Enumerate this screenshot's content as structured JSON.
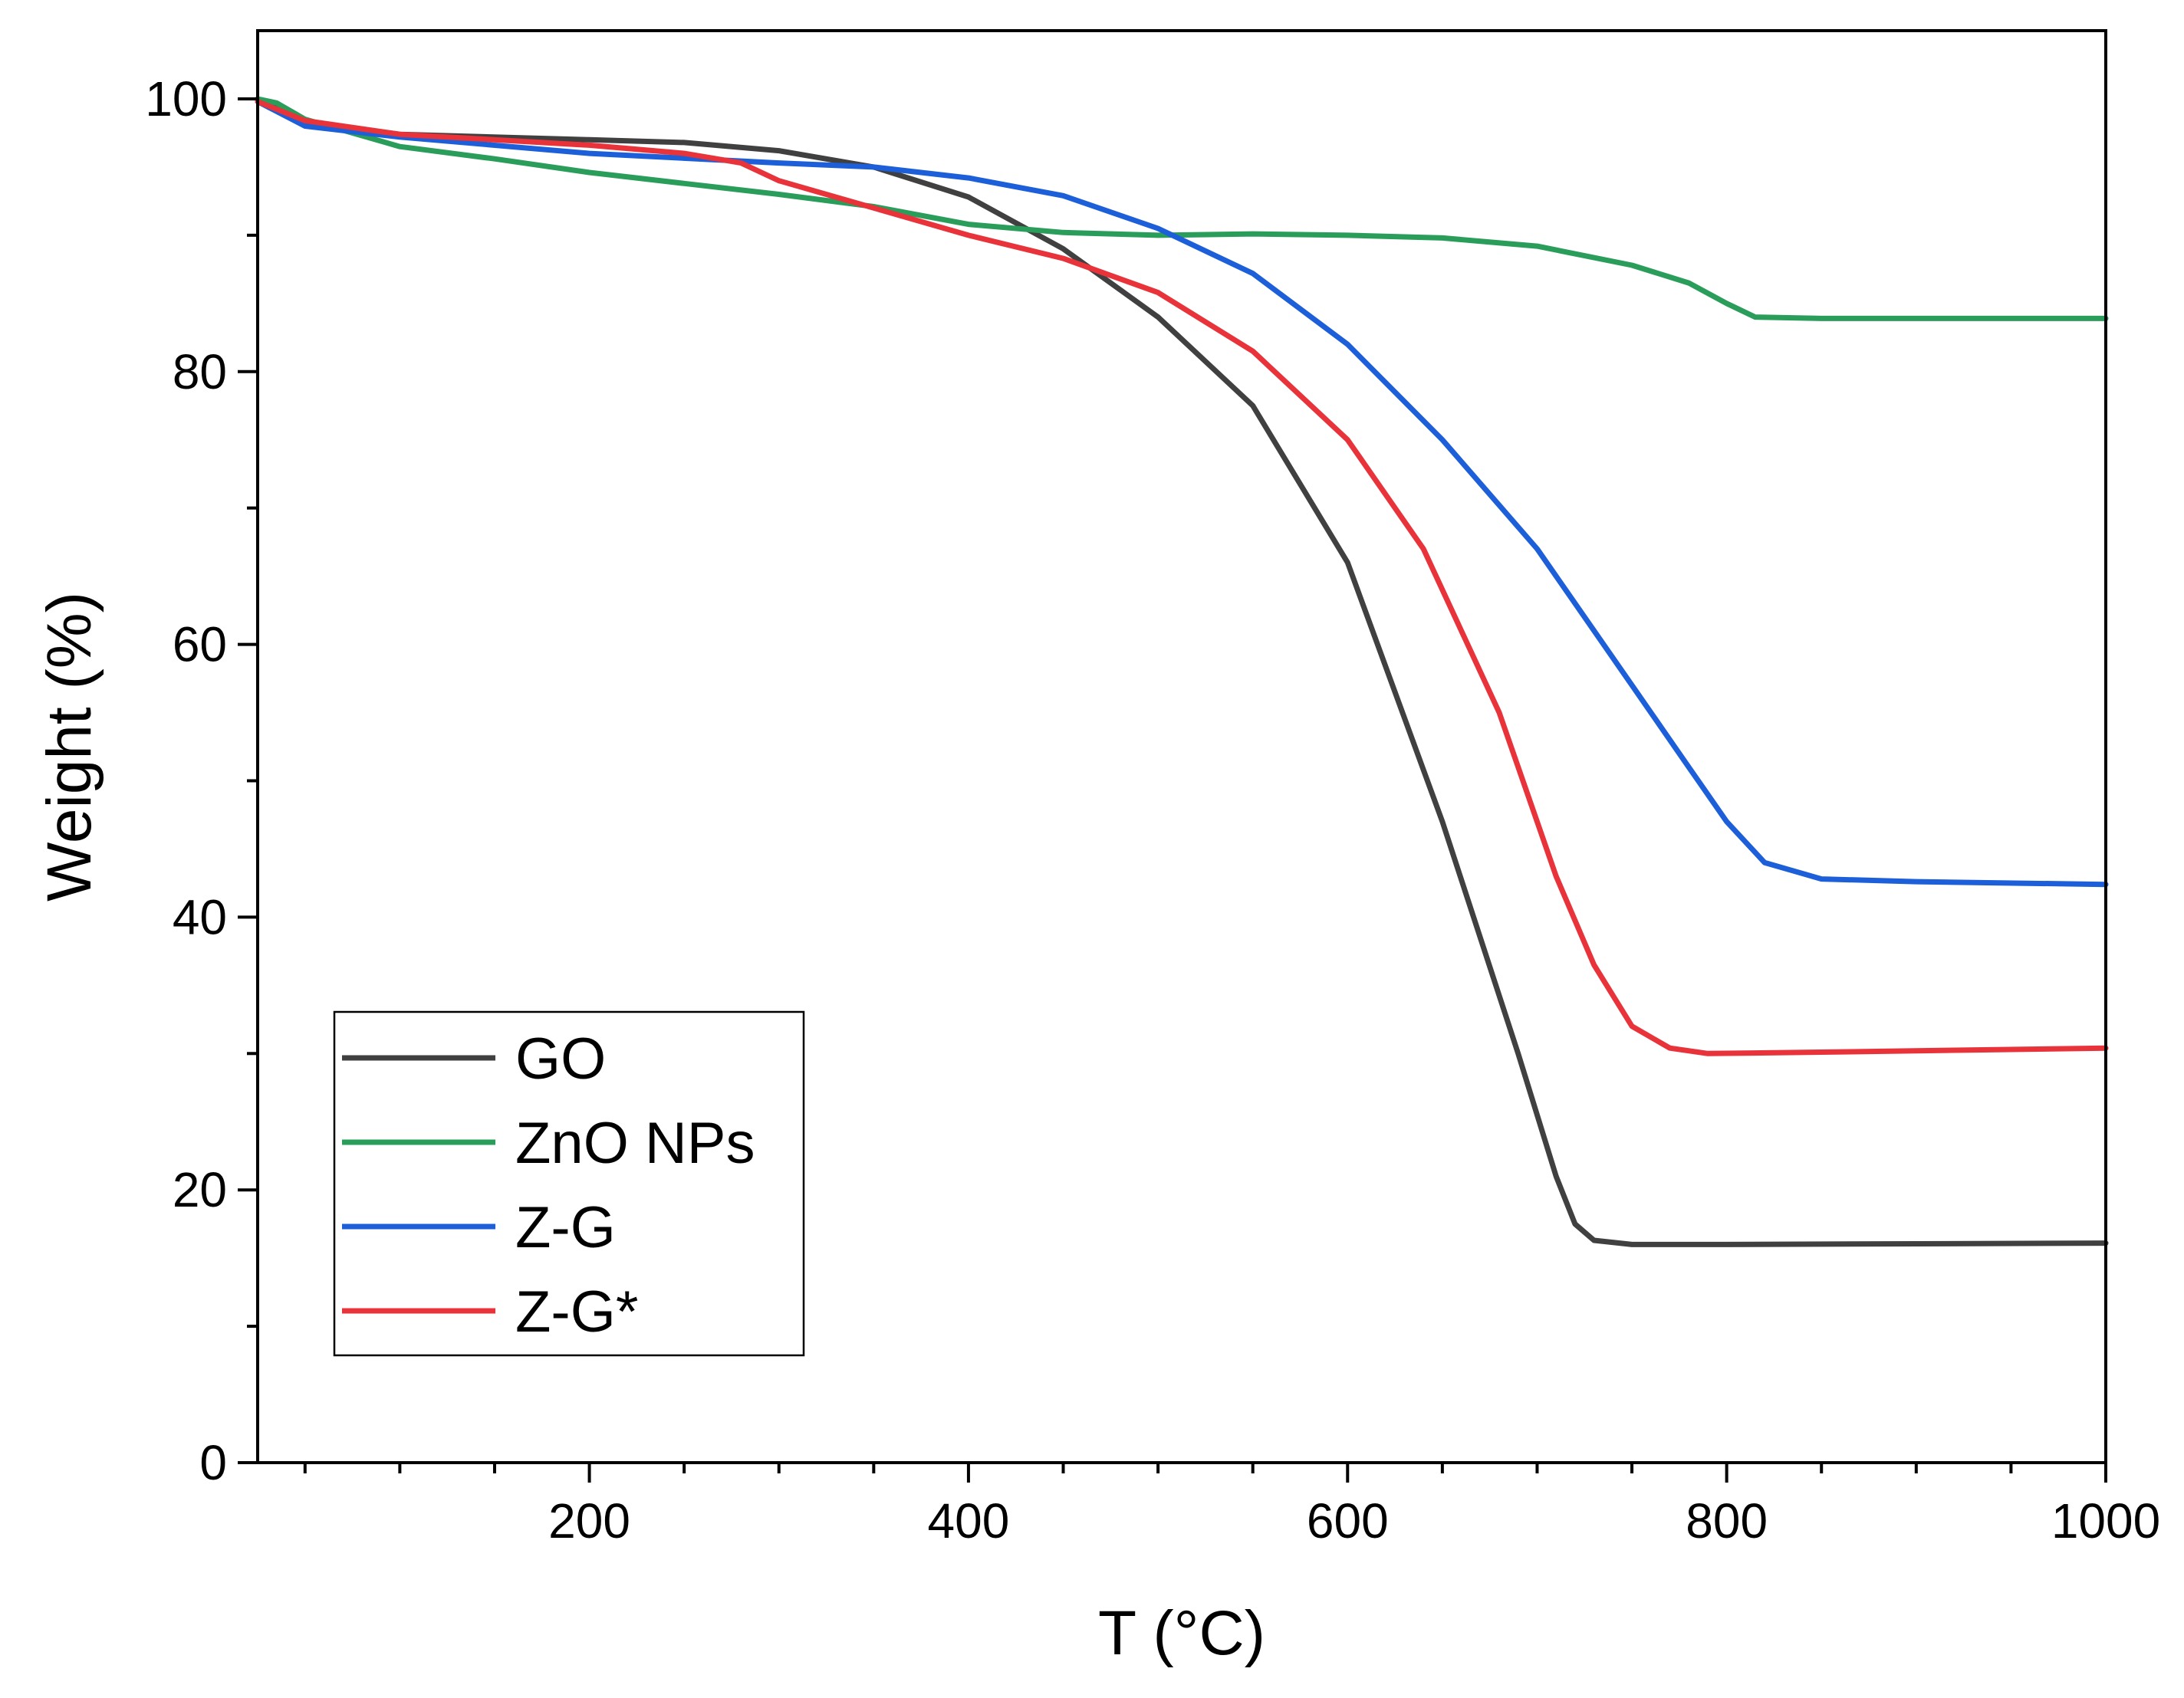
{
  "chart_data": {
    "type": "line",
    "title": "",
    "xlabel": "T (°C)",
    "ylabel": "Weight (%)",
    "xlim": [
      25,
      1000
    ],
    "ylim": [
      0,
      105
    ],
    "xticks": [
      200,
      400,
      600,
      800,
      1000
    ],
    "xtick_labels": [
      "200",
      "400",
      "600",
      "800",
      "1000"
    ],
    "yticks": [
      0,
      20,
      40,
      60,
      80,
      100
    ],
    "ytick_labels": [
      "0",
      "20",
      "40",
      "60",
      "80",
      "100"
    ],
    "x_minor_step": 50,
    "y_minor_step": 10,
    "grid": false,
    "legend_position": "bottom-left",
    "series": [
      {
        "name": "GO",
        "color": "#404040",
        "points": [
          [
            25,
            100
          ],
          [
            50,
            98.3
          ],
          [
            100,
            97.4
          ],
          [
            200,
            97.0
          ],
          [
            250,
            96.8
          ],
          [
            300,
            96.2
          ],
          [
            350,
            95.0
          ],
          [
            400,
            92.8
          ],
          [
            450,
            89.0
          ],
          [
            480,
            86.0
          ],
          [
            500,
            84.0
          ],
          [
            550,
            77.5
          ],
          [
            600,
            66.0
          ],
          [
            650,
            47.0
          ],
          [
            690,
            30.0
          ],
          [
            710,
            21.0
          ],
          [
            720,
            17.5
          ],
          [
            730,
            16.3
          ],
          [
            750,
            16.0
          ],
          [
            800,
            16.0
          ],
          [
            1000,
            16.1
          ]
        ]
      },
      {
        "name": "ZnO NPs",
        "color": "#2a9d5a",
        "points": [
          [
            25,
            100
          ],
          [
            35,
            99.7
          ],
          [
            50,
            98.5
          ],
          [
            100,
            96.5
          ],
          [
            150,
            95.6
          ],
          [
            200,
            94.6
          ],
          [
            250,
            93.8
          ],
          [
            300,
            93.0
          ],
          [
            350,
            92.1
          ],
          [
            400,
            90.8
          ],
          [
            450,
            90.2
          ],
          [
            500,
            90.0
          ],
          [
            550,
            90.1
          ],
          [
            600,
            90.0
          ],
          [
            650,
            89.8
          ],
          [
            700,
            89.2
          ],
          [
            750,
            87.8
          ],
          [
            780,
            86.5
          ],
          [
            800,
            85.0
          ],
          [
            815,
            84.0
          ],
          [
            850,
            83.9
          ],
          [
            1000,
            83.9
          ]
        ]
      },
      {
        "name": "Z-G",
        "color": "#1c5fd9",
        "points": [
          [
            25,
            99.8
          ],
          [
            50,
            98.0
          ],
          [
            100,
            97.2
          ],
          [
            200,
            96.0
          ],
          [
            300,
            95.3
          ],
          [
            350,
            95.0
          ],
          [
            400,
            94.2
          ],
          [
            450,
            92.9
          ],
          [
            500,
            90.5
          ],
          [
            550,
            87.2
          ],
          [
            600,
            82.0
          ],
          [
            650,
            75.0
          ],
          [
            700,
            67.0
          ],
          [
            750,
            57.0
          ],
          [
            780,
            51.0
          ],
          [
            800,
            47.0
          ],
          [
            820,
            44.0
          ],
          [
            850,
            42.8
          ],
          [
            900,
            42.6
          ],
          [
            1000,
            42.4
          ]
        ]
      },
      {
        "name": "Z-G*",
        "color": "#e8333a",
        "points": [
          [
            25,
            99.8
          ],
          [
            50,
            98.4
          ],
          [
            100,
            97.4
          ],
          [
            200,
            96.6
          ],
          [
            250,
            96.0
          ],
          [
            280,
            95.3
          ],
          [
            300,
            94.0
          ],
          [
            350,
            92.0
          ],
          [
            400,
            90.0
          ],
          [
            450,
            88.3
          ],
          [
            500,
            85.8
          ],
          [
            550,
            81.5
          ],
          [
            600,
            75.0
          ],
          [
            640,
            67.0
          ],
          [
            680,
            55.0
          ],
          [
            710,
            43.0
          ],
          [
            730,
            36.5
          ],
          [
            750,
            32.0
          ],
          [
            770,
            30.4
          ],
          [
            790,
            30.0
          ],
          [
            850,
            30.1
          ],
          [
            1000,
            30.4
          ]
        ]
      }
    ]
  }
}
